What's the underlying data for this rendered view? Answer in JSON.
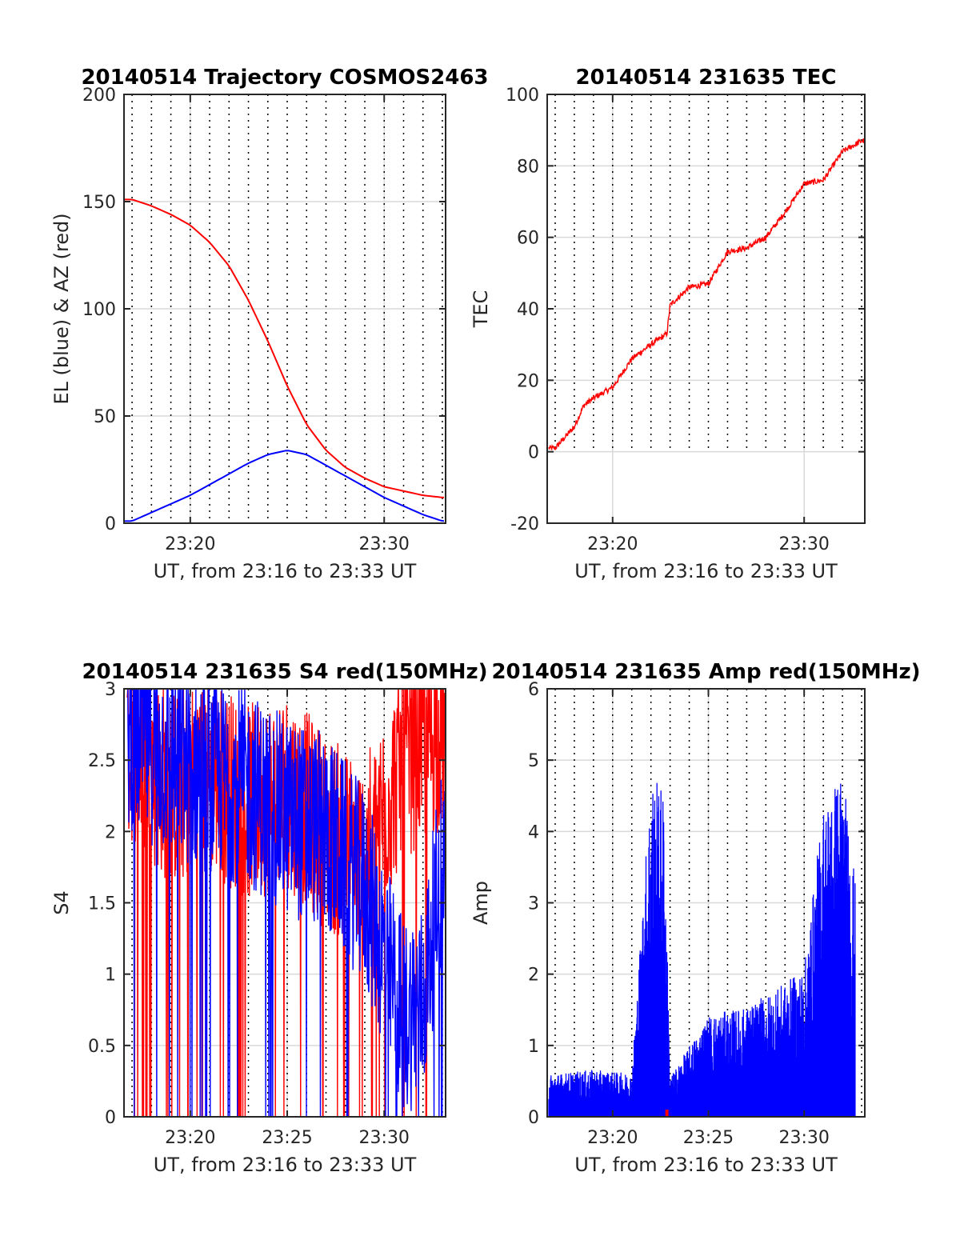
{
  "colors": {
    "red": "#ff0000",
    "blue": "#0000ff",
    "grid": "#d9d9d9",
    "axis": "#262626"
  },
  "chart_data": [
    {
      "type": "line",
      "title": "20140514 Trajectory COSMOS2463",
      "xlabel": "UT, from 23:16 to 23:33 UT",
      "ylabel": "EL (blue) & AZ (red)",
      "xlim": [
        "23:16:35",
        "23:33:10"
      ],
      "ylim": [
        0,
        200
      ],
      "xticks": [
        "23:20",
        "23:30"
      ],
      "yticks": [
        "0",
        "50",
        "100",
        "150",
        "200"
      ],
      "grid": "on",
      "series": [
        {
          "color": "#ff0000",
          "x": [
            "23:17",
            "23:18",
            "23:19",
            "23:20",
            "23:21",
            "23:22",
            "23:23",
            "23:24",
            "23:25",
            "23:26",
            "23:27",
            "23:28",
            "23:29",
            "23:30",
            "23:31",
            "23:32",
            "23:33"
          ],
          "values": [
            151,
            148,
            144,
            139,
            131,
            120,
            104,
            85,
            64,
            46,
            34,
            26,
            21,
            17,
            15,
            13,
            12
          ]
        },
        {
          "color": "#0000ff",
          "x": [
            "23:17",
            "23:18",
            "23:19",
            "23:20",
            "23:21",
            "23:22",
            "23:23",
            "23:24",
            "23:25",
            "23:26",
            "23:27",
            "23:28",
            "23:29",
            "23:30",
            "23:31",
            "23:32",
            "23:33"
          ],
          "values": [
            1,
            5,
            9,
            13,
            18,
            23,
            28,
            32,
            34,
            32,
            27,
            22,
            17,
            12,
            8,
            4,
            1
          ]
        }
      ]
    },
    {
      "type": "line",
      "title": "20140514 231635 TEC",
      "xlabel": "UT, from 23:16 to 23:33 UT",
      "ylabel": "TEC",
      "xlim": [
        "23:16:35",
        "23:33:10"
      ],
      "ylim": [
        -20,
        100
      ],
      "xticks": [
        "23:20",
        "23:30"
      ],
      "yticks": [
        "-20",
        "0",
        "20",
        "40",
        "60",
        "80",
        "100"
      ],
      "grid": "on",
      "series": [
        {
          "color": "#ff0000",
          "x": [
            "23:16:40",
            "23:17",
            "23:18",
            "23:18:30",
            "23:19",
            "23:20",
            "23:21",
            "23:22",
            "23:22:50",
            "23:23",
            "23:24",
            "23:25",
            "23:26",
            "23:27",
            "23:28",
            "23:29",
            "23:30",
            "23:31",
            "23:32",
            "23:33"
          ],
          "values": [
            1,
            1,
            7,
            13,
            15,
            18,
            26,
            30,
            33,
            41,
            46,
            47,
            56,
            57,
            60,
            67,
            75,
            76,
            84,
            87
          ]
        }
      ]
    },
    {
      "type": "line",
      "title": "20140514 231635 S4 red(150MHz)",
      "xlabel": "UT, from 23:16 to 23:33 UT",
      "ylabel": "S4",
      "xlim": [
        "23:16:35",
        "23:33:10"
      ],
      "ylim": [
        0,
        3
      ],
      "xticks": [
        "23:20",
        "23:25",
        "23:30"
      ],
      "yticks": [
        "0",
        "0.5",
        "1",
        "1.5",
        "2",
        "2.5",
        "3"
      ],
      "grid": "on",
      "series": [
        {
          "color": "#ff0000",
          "description_values": "noisy, mostly 1.5–3 with frequent drops to 0; saturated 23:31–23:33",
          "x": [
            "23:17",
            "23:19",
            "23:21",
            "23:23",
            "23:25",
            "23:27",
            "23:29",
            "23:31",
            "23:33"
          ],
          "values": [
            2.6,
            2.3,
            2.4,
            2.2,
            2.3,
            2.0,
            1.8,
            2.5,
            2.7
          ]
        },
        {
          "color": "#0000ff",
          "x": [
            "23:17",
            "23:19",
            "23:21",
            "23:23",
            "23:25",
            "23:27",
            "23:29",
            "23:31",
            "23:32",
            "23:33"
          ],
          "values": [
            2.7,
            2.5,
            2.4,
            2.3,
            2.1,
            2.0,
            1.6,
            0.7,
            0.8,
            1.8
          ]
        }
      ]
    },
    {
      "type": "line",
      "title": "20140514 231635 Amp red(150MHz)",
      "xlabel": "UT, from 23:16 to 23:33 UT",
      "ylabel": "Amp",
      "xlim": [
        "23:16:35",
        "23:33:10"
      ],
      "ylim": [
        0,
        6
      ],
      "xticks": [
        "23:20",
        "23:25",
        "23:30"
      ],
      "yticks": [
        "0",
        "1",
        "2",
        "3",
        "4",
        "5",
        "6"
      ],
      "grid": "on",
      "series": [
        {
          "color": "#0000ff",
          "x": [
            "23:17",
            "23:19",
            "23:21",
            "23:22",
            "23:22:40",
            "23:23",
            "23:25",
            "23:27",
            "23:29",
            "23:30",
            "23:31",
            "23:32",
            "23:32:40"
          ],
          "values": [
            0.55,
            0.6,
            0.55,
            4.4,
            4.2,
            0.5,
            1.3,
            1.4,
            1.7,
            1.9,
            4.0,
            4.5,
            3.0
          ]
        },
        {
          "color": "#ff0000",
          "x": [
            "23:22:50"
          ],
          "values": [
            0.1
          ]
        }
      ]
    }
  ]
}
